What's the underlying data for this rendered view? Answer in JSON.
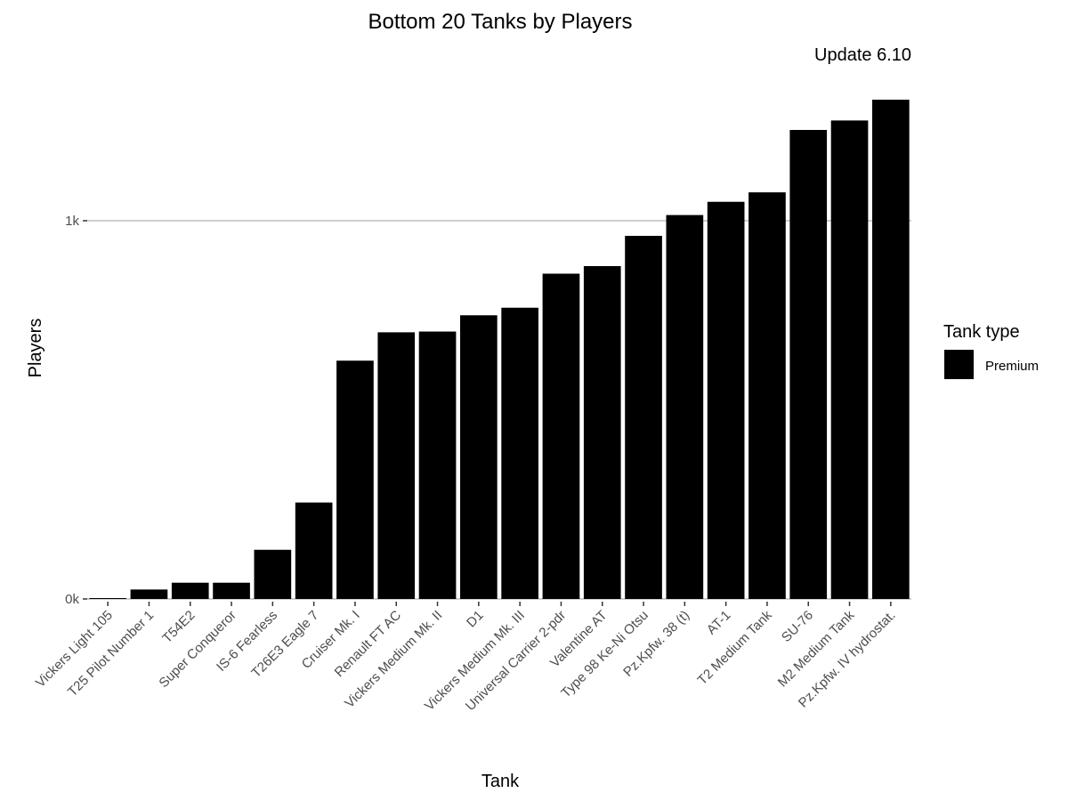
{
  "chart_data": {
    "type": "bar",
    "title": "Bottom 20 Tanks by Players",
    "subtitle": "Update 6.10",
    "xlabel": "Tank",
    "ylabel": "Players",
    "categories": [
      "Vickers Light 105",
      "T25 Pilot Number 1",
      "T54E2",
      "Super Conqueror",
      "IS-6 Fearless",
      "T26E3 Eagle 7",
      "Cruiser Mk. I",
      "Renault FT AC",
      "Vickers Medium Mk. II",
      "D1",
      "Vickers Medium Mk. III",
      "Universal Carrier 2-pdr",
      "Valentine AT",
      "Type 98 Ke-Ni Otsu",
      "Pz.Kpfw. 38 (t)",
      "AT-1",
      "T2 Medium Tank",
      "SU-76",
      "M2 Medium Tank",
      "Pz.Kpfw. IV hydrostat."
    ],
    "series": [
      {
        "name": "Premium",
        "color": "#000000",
        "values": [
          2,
          25,
          43,
          43,
          130,
          255,
          630,
          705,
          707,
          750,
          770,
          860,
          880,
          960,
          1015,
          1050,
          1075,
          1240,
          1265,
          1320
        ]
      }
    ],
    "ylim": [
      0,
      1320
    ],
    "yticks": [
      {
        "value": 0,
        "label": "0k"
      },
      {
        "value": 1000,
        "label": "1k"
      }
    ],
    "grid": "major y only",
    "legend": {
      "title": "Tank type",
      "position": "right",
      "items": [
        {
          "label": "Premium",
          "color": "#000000"
        }
      ]
    }
  }
}
